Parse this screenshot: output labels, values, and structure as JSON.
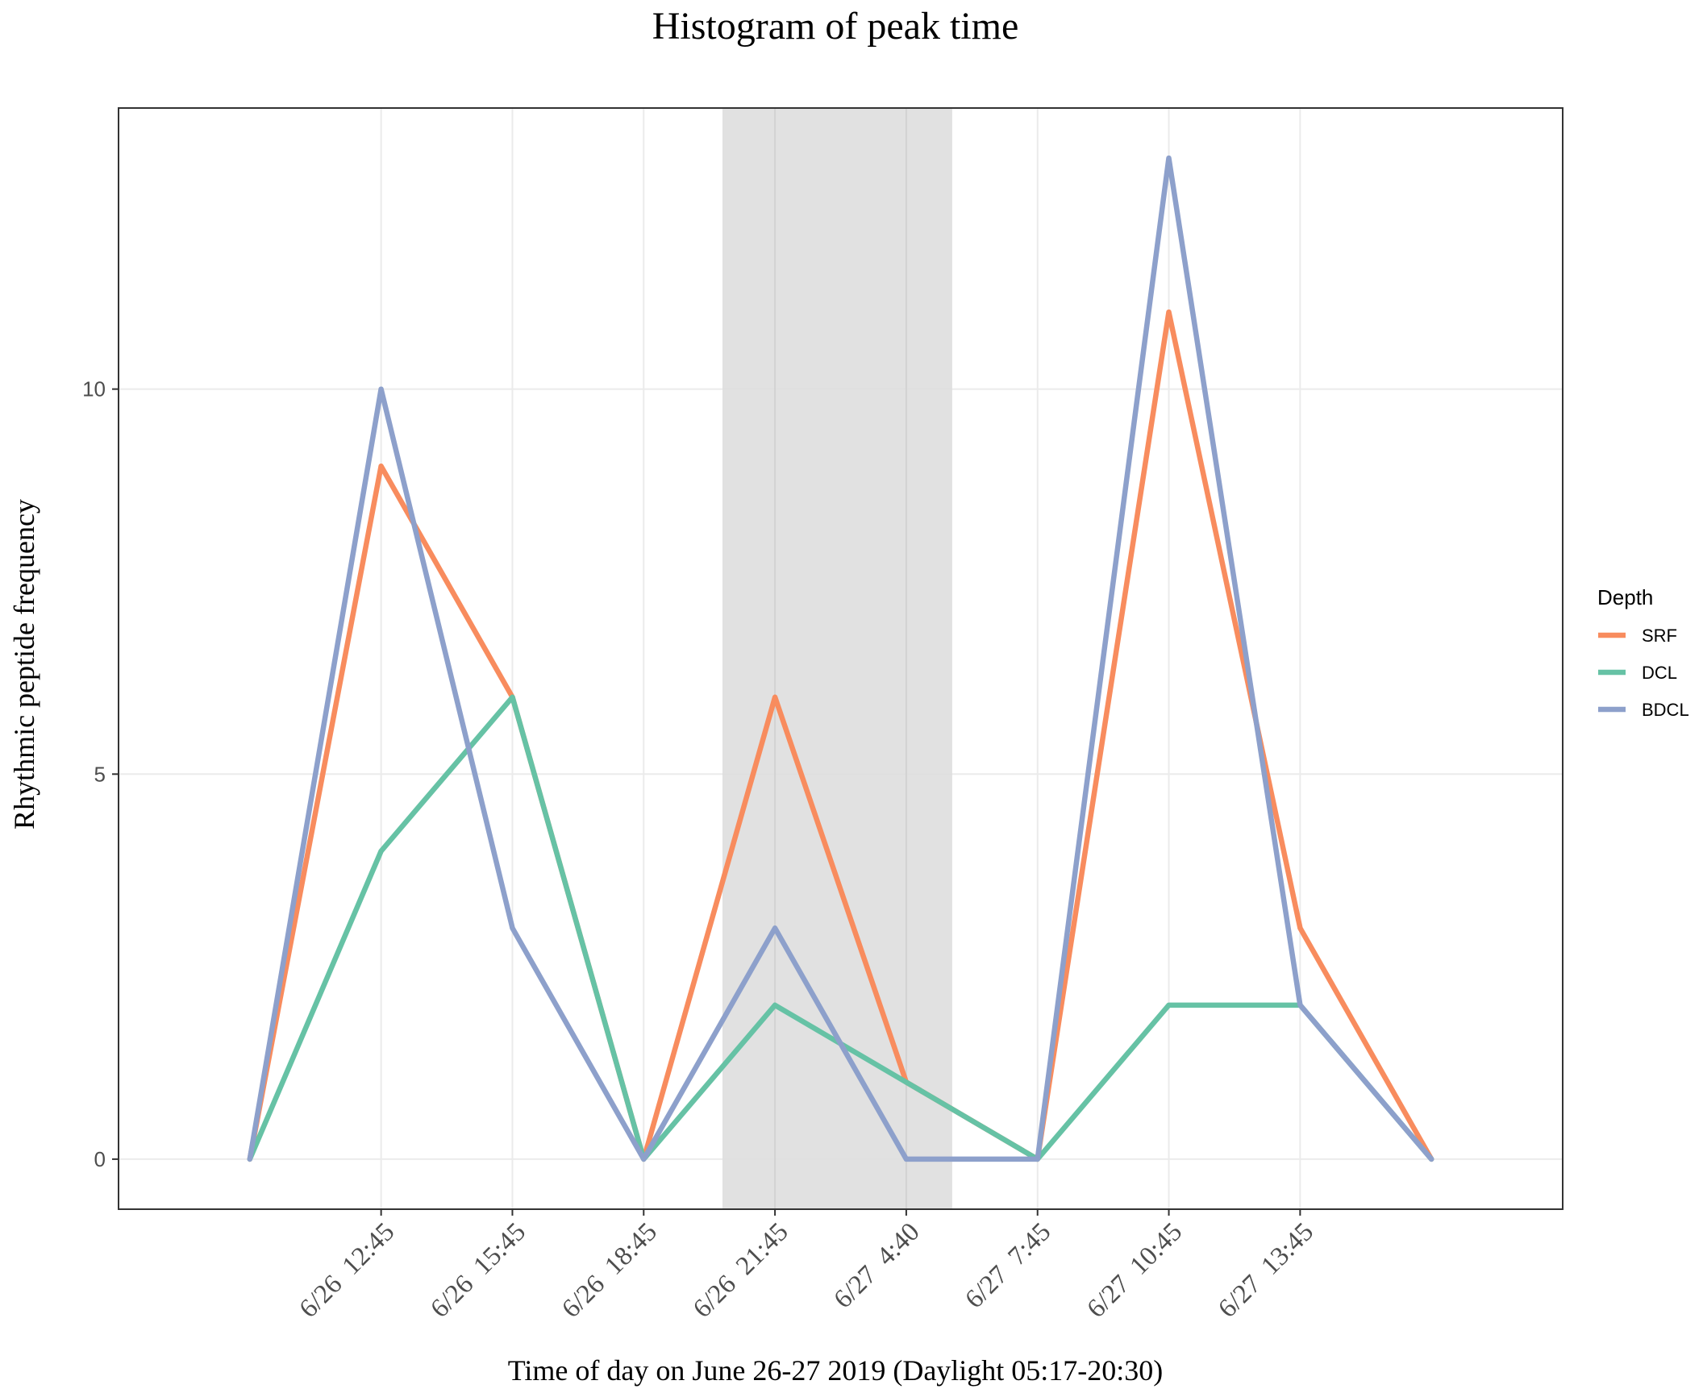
{
  "chart_data": {
    "type": "line",
    "title": "Histogram of peak time",
    "xlabel": "Time of day on June 26-27 2019 (Daylight 05:17-20:30)",
    "ylabel": "Rhythmic peptide frequency",
    "x_points": 10,
    "tick_labels": [
      "6/26  12:45",
      "6/26  15:45",
      "6/26  18:45",
      "6/26  21:45",
      "6/27  4:40",
      "6/27  7:45",
      "6/27  10:45",
      "6/27  13:45"
    ],
    "tick_positions": [
      1,
      2,
      3,
      4,
      5,
      6,
      7,
      8
    ],
    "y_ticks": [
      0,
      5,
      10
    ],
    "ylim": [
      -0.65,
      13.65
    ],
    "xlim": [
      -1,
      10
    ],
    "grid": true,
    "shaded_region": {
      "from": 3.6,
      "to": 5.35,
      "color": "#dedede"
    },
    "legend": {
      "title": "Depth",
      "position": "right"
    },
    "series": [
      {
        "name": "SRF",
        "color": "#f88c5e",
        "values": [
          0,
          9,
          6,
          0,
          6,
          1,
          0,
          11,
          3,
          0
        ]
      },
      {
        "name": "DCL",
        "color": "#66c2a5",
        "values": [
          0,
          4,
          6,
          0,
          2,
          1,
          0,
          2,
          2,
          0
        ]
      },
      {
        "name": "BDCL",
        "color": "#8da0cb",
        "values": [
          0,
          10,
          3,
          0,
          3,
          0,
          0,
          13,
          2,
          0
        ]
      }
    ]
  }
}
